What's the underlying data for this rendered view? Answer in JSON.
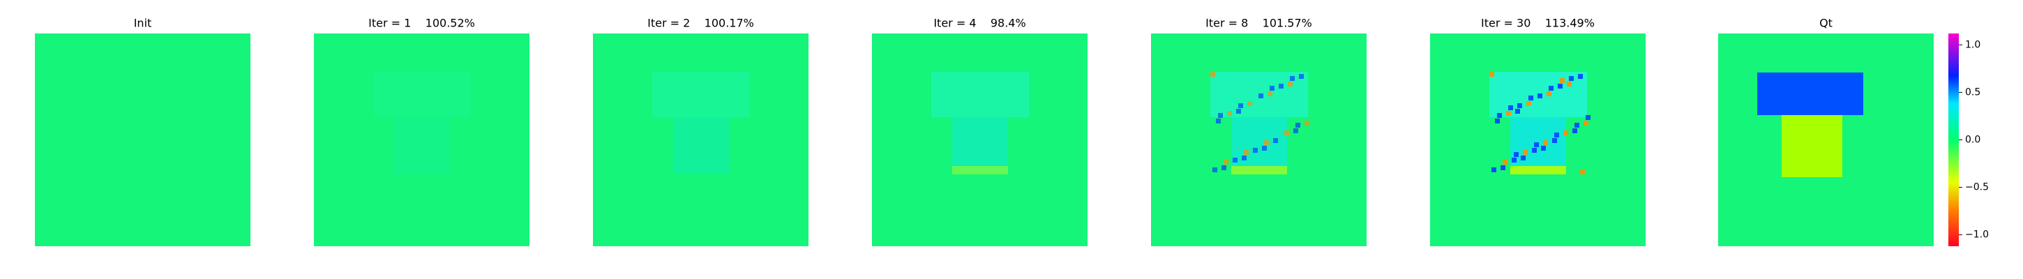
{
  "chart_data": {
    "type": "image",
    "panels": [
      {
        "title": "Init"
      },
      {
        "title": "Iter = 1    100.52%"
      },
      {
        "title": "Iter = 2    100.17%"
      },
      {
        "title": "Iter = 4    98.4%"
      },
      {
        "title": "Iter = 8    101.57%"
      },
      {
        "title": "Iter = 30    113.49%"
      },
      {
        "title": "Qt"
      }
    ],
    "colorbar": {
      "clim": [
        -1.12,
        1.12
      ],
      "ticks": [
        {
          "value": 1.0,
          "label": "1.0"
        },
        {
          "value": 0.5,
          "label": "0.5"
        },
        0,
        {
          "value": 0.0,
          "label": "0.0"
        },
        {
          "value": -0.5,
          "label": "−0.5"
        },
        {
          "value": -1.0,
          "label": "−1.0"
        }
      ]
    }
  }
}
